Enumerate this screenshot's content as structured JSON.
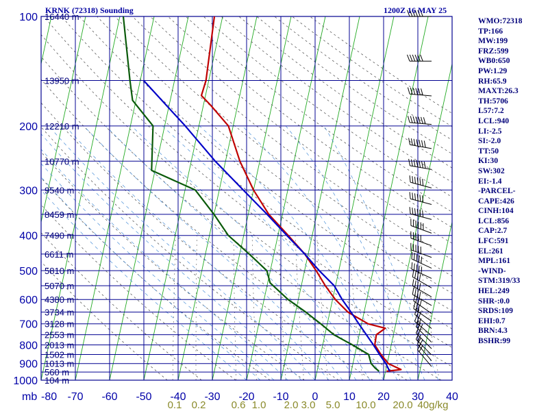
{
  "title_left": "KRNK (72318) Sounding",
  "title_right": "1200Z 16 MAY 25",
  "indices": [
    "WMO:72318",
    "TP:166",
    "MW:199",
    "FRZ:599",
    "WB0:650",
    "PW:1.29",
    "RH:65.9",
    "MAXT:26.3",
    "TH:5706",
    "L57:7.2",
    "LCL:940",
    "LI:-2.5",
    "SI:-2.0",
    "TT:50",
    "KI:30",
    "SW:302",
    "EI:-1.4",
    "-PARCEL-",
    "CAPE:426",
    "CINH:104",
    "LCL:856",
    "CAP:2.7",
    "LFC:591",
    "EL:261",
    "MPL:161",
    "-WIND-",
    "STM:319/33",
    "HEL:249",
    "SHR-:0.0",
    "SRDS:109",
    "EHI:0.7",
    "BRN:4.3",
    "BSHR:99"
  ],
  "chart_data": {
    "type": "line",
    "title": "KRNK (72318) Sounding",
    "xaxis": {
      "unit_label": "mb",
      "ticks": [
        -80,
        -70,
        -60,
        -50,
        -40,
        -30,
        -20,
        -10,
        0,
        10,
        20,
        30,
        40
      ],
      "range": [
        -80,
        40
      ]
    },
    "yaxis": {
      "scale": "log",
      "unit": "mb",
      "ticks": [
        100,
        200,
        300,
        400,
        500,
        600,
        700,
        800,
        900,
        1000
      ],
      "range": [
        100,
        1000
      ]
    },
    "height_labels": [
      {
        "p": 100,
        "text": "16440 m"
      },
      {
        "p": 150,
        "text": "13950 m"
      },
      {
        "p": 200,
        "text": "12210 m"
      },
      {
        "p": 250,
        "text": "10770 m"
      },
      {
        "p": 300,
        "text": "9540 m"
      },
      {
        "p": 350,
        "text": "8459 m"
      },
      {
        "p": 400,
        "text": "7490 m"
      },
      {
        "p": 450,
        "text": "6611 m"
      },
      {
        "p": 500,
        "text": "5810 m"
      },
      {
        "p": 550,
        "text": "5070 m"
      },
      {
        "p": 600,
        "text": "4380 m"
      },
      {
        "p": 650,
        "text": "3734 m"
      },
      {
        "p": 700,
        "text": "3128 m"
      },
      {
        "p": 750,
        "text": "2553 m"
      },
      {
        "p": 800,
        "text": "2013 m"
      },
      {
        "p": 850,
        "text": "1502 m"
      },
      {
        "p": 900,
        "text": "1013 m"
      },
      {
        "p": 950,
        "text": "560 m"
      },
      {
        "p": 1000,
        "text": "104 m"
      }
    ],
    "mixing_ratio_labels": [
      "0.1",
      "0.2",
      "0.6",
      "1.0",
      "2.0",
      "3.0",
      "5.0",
      "10.0",
      "20.0",
      "40g/kg"
    ],
    "mixing_ratio_values": [
      0.1,
      0.2,
      0.6,
      1.0,
      2.0,
      3.0,
      5.0,
      10.0,
      20.0,
      40.0
    ],
    "series": [
      {
        "color": "#c00000",
        "points": [
          [
            100,
            -52.4
          ],
          [
            150,
            -50.8
          ],
          [
            165,
            -51.2
          ],
          [
            175,
            -48
          ],
          [
            200,
            -41.4
          ],
          [
            250,
            -35.8
          ],
          [
            300,
            -30
          ],
          [
            350,
            -24
          ],
          [
            400,
            -17
          ],
          [
            450,
            -11
          ],
          [
            500,
            -6.6
          ],
          [
            550,
            -3
          ],
          [
            600,
            0.8
          ],
          [
            650,
            5.3
          ],
          [
            700,
            11.9
          ],
          [
            720,
            17.2
          ],
          [
            750,
            15
          ],
          [
            800,
            15.2
          ],
          [
            850,
            17.6
          ],
          [
            900,
            20.3
          ],
          [
            935,
            24.4
          ],
          [
            945,
            20.3
          ]
        ]
      },
      {
        "color": "#0a5a0a",
        "points": [
          [
            100,
            -79
          ],
          [
            150,
            -73
          ],
          [
            170,
            -71
          ],
          [
            200,
            -63.4
          ],
          [
            265,
            -61
          ],
          [
            300,
            -47
          ],
          [
            350,
            -40
          ],
          [
            400,
            -34.5
          ],
          [
            450,
            -27.2
          ],
          [
            500,
            -21
          ],
          [
            540,
            -19.3
          ],
          [
            600,
            -13
          ],
          [
            650,
            -7
          ],
          [
            700,
            -1.9
          ],
          [
            750,
            2.6
          ],
          [
            800,
            8.7
          ],
          [
            850,
            14
          ],
          [
            900,
            15.3
          ],
          [
            925,
            16.7
          ],
          [
            945,
            18.1
          ]
        ]
      },
      {
        "color": "#0000c8",
        "points": [
          [
            150,
            -69
          ],
          [
            200,
            -54
          ],
          [
            250,
            -43
          ],
          [
            300,
            -33
          ],
          [
            350,
            -24.5
          ],
          [
            400,
            -17.4
          ],
          [
            450,
            -11
          ],
          [
            500,
            -5.7
          ],
          [
            550,
            -0.4
          ],
          [
            600,
            2.8
          ],
          [
            650,
            6.2
          ],
          [
            700,
            9.2
          ],
          [
            750,
            12.1
          ],
          [
            800,
            14.8
          ],
          [
            850,
            17.2
          ],
          [
            900,
            19.6
          ],
          [
            945,
            21.2
          ]
        ]
      }
    ],
    "wind_barbs": {
      "direction_deg": [
        270,
        270,
        275,
        275,
        280,
        280,
        285,
        285,
        285,
        290,
        290,
        290,
        295,
        295,
        300,
        300,
        300,
        305,
        305,
        310,
        310,
        315,
        315,
        315,
        320,
        320
      ],
      "speed_kt": [
        60,
        60,
        65,
        70,
        70,
        70,
        65,
        65,
        60,
        60,
        55,
        55,
        50,
        50,
        45,
        45,
        40,
        40,
        35,
        35,
        30,
        30,
        25,
        25,
        20,
        20
      ]
    }
  }
}
